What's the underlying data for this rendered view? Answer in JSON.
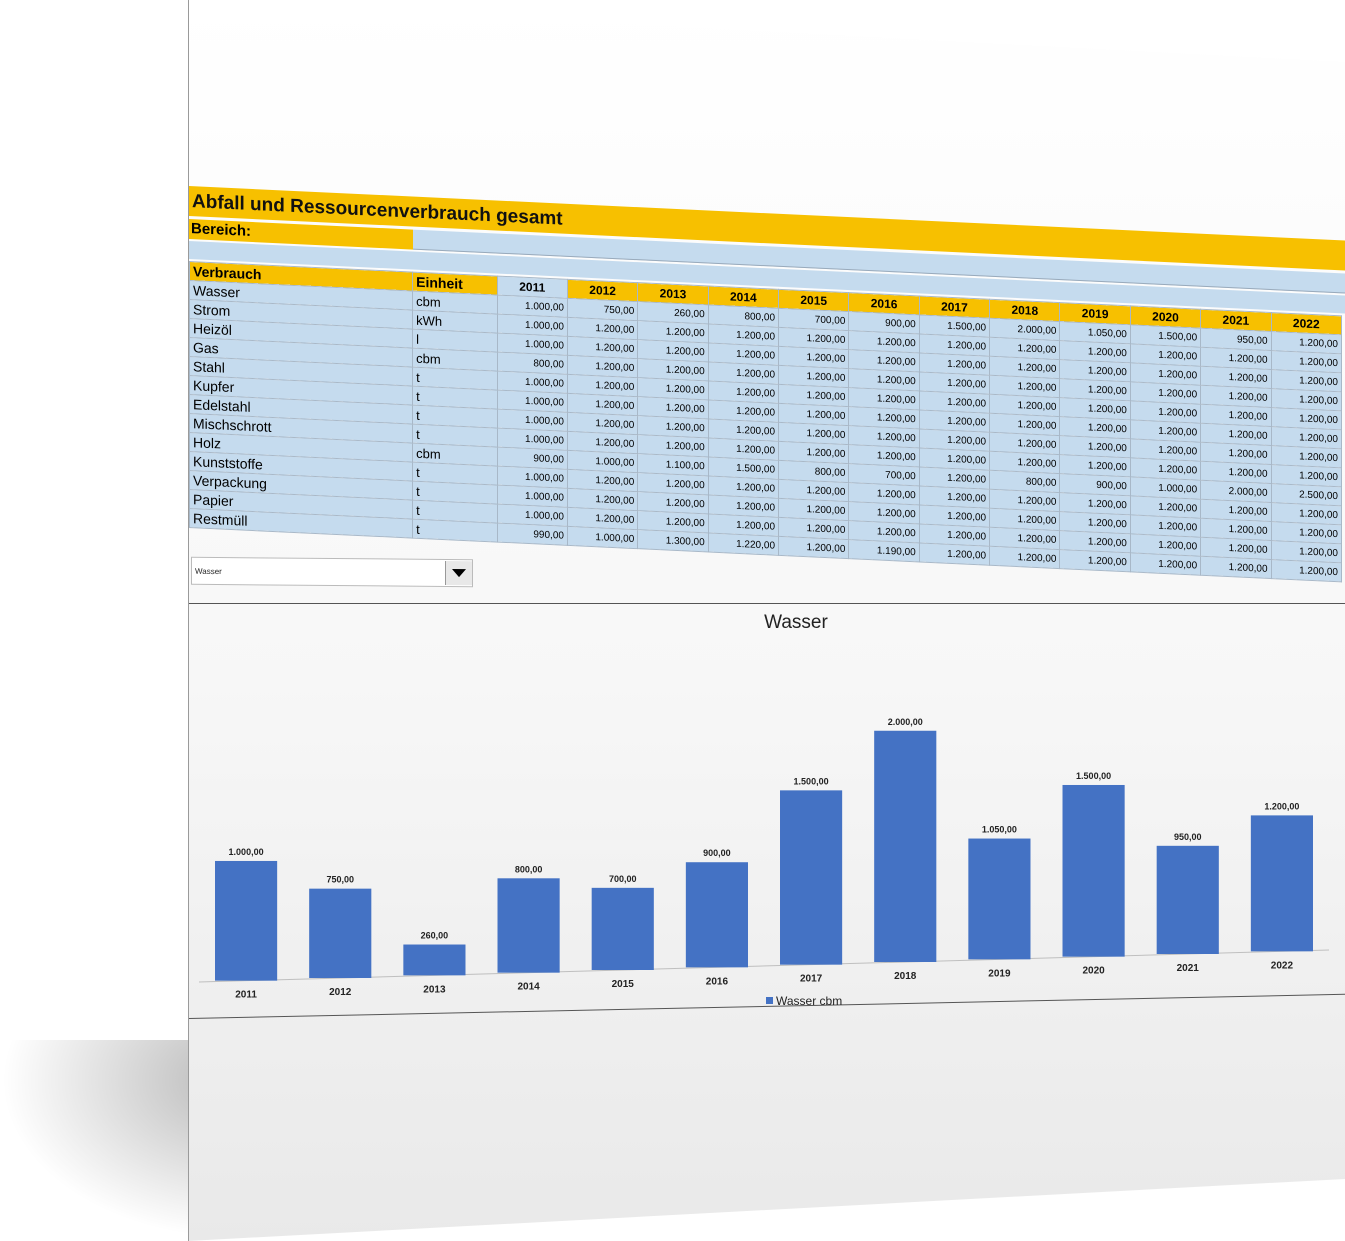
{
  "title": "Abfall und Ressourcenverbrauch gesamt",
  "bereich_label": "Bereich:",
  "table": {
    "headers": [
      "Verbrauch",
      "Einheit"
    ],
    "years": [
      "2011",
      "2012",
      "2013",
      "2014",
      "2015",
      "2016",
      "2017",
      "2018",
      "2019",
      "2020",
      "2021",
      "2022"
    ],
    "rows": [
      {
        "name": "Wasser",
        "unit": "cbm",
        "values": [
          "1.000,00",
          "750,00",
          "260,00",
          "800,00",
          "700,00",
          "900,00",
          "1.500,00",
          "2.000,00",
          "1.050,00",
          "1.500,00",
          "950,00",
          "1.200,00"
        ]
      },
      {
        "name": "Strom",
        "unit": "kWh",
        "values": [
          "1.000,00",
          "1.200,00",
          "1.200,00",
          "1.200,00",
          "1.200,00",
          "1.200,00",
          "1.200,00",
          "1.200,00",
          "1.200,00",
          "1.200,00",
          "1.200,00",
          "1.200,00"
        ]
      },
      {
        "name": "Heizöl",
        "unit": "l",
        "values": [
          "1.000,00",
          "1.200,00",
          "1.200,00",
          "1.200,00",
          "1.200,00",
          "1.200,00",
          "1.200,00",
          "1.200,00",
          "1.200,00",
          "1.200,00",
          "1.200,00",
          "1.200,00"
        ]
      },
      {
        "name": "Gas",
        "unit": "cbm",
        "values": [
          "800,00",
          "1.200,00",
          "1.200,00",
          "1.200,00",
          "1.200,00",
          "1.200,00",
          "1.200,00",
          "1.200,00",
          "1.200,00",
          "1.200,00",
          "1.200,00",
          "1.200,00"
        ]
      },
      {
        "name": "Stahl",
        "unit": "t",
        "values": [
          "1.000,00",
          "1.200,00",
          "1.200,00",
          "1.200,00",
          "1.200,00",
          "1.200,00",
          "1.200,00",
          "1.200,00",
          "1.200,00",
          "1.200,00",
          "1.200,00",
          "1.200,00"
        ]
      },
      {
        "name": "Kupfer",
        "unit": "t",
        "values": [
          "1.000,00",
          "1.200,00",
          "1.200,00",
          "1.200,00",
          "1.200,00",
          "1.200,00",
          "1.200,00",
          "1.200,00",
          "1.200,00",
          "1.200,00",
          "1.200,00",
          "1.200,00"
        ]
      },
      {
        "name": "Edelstahl",
        "unit": "t",
        "values": [
          "1.000,00",
          "1.200,00",
          "1.200,00",
          "1.200,00",
          "1.200,00",
          "1.200,00",
          "1.200,00",
          "1.200,00",
          "1.200,00",
          "1.200,00",
          "1.200,00",
          "1.200,00"
        ]
      },
      {
        "name": "Mischschrott",
        "unit": "t",
        "values": [
          "1.000,00",
          "1.200,00",
          "1.200,00",
          "1.200,00",
          "1.200,00",
          "1.200,00",
          "1.200,00",
          "1.200,00",
          "1.200,00",
          "1.200,00",
          "1.200,00",
          "1.200,00"
        ]
      },
      {
        "name": "Holz",
        "unit": "cbm",
        "values": [
          "900,00",
          "1.000,00",
          "1.100,00",
          "1.500,00",
          "800,00",
          "700,00",
          "1.200,00",
          "800,00",
          "900,00",
          "1.000,00",
          "2.000,00",
          "2.500,00"
        ]
      },
      {
        "name": "Kunststoffe",
        "unit": "t",
        "values": [
          "1.000,00",
          "1.200,00",
          "1.200,00",
          "1.200,00",
          "1.200,00",
          "1.200,00",
          "1.200,00",
          "1.200,00",
          "1.200,00",
          "1.200,00",
          "1.200,00",
          "1.200,00"
        ]
      },
      {
        "name": "Verpackung",
        "unit": "t",
        "values": [
          "1.000,00",
          "1.200,00",
          "1.200,00",
          "1.200,00",
          "1.200,00",
          "1.200,00",
          "1.200,00",
          "1.200,00",
          "1.200,00",
          "1.200,00",
          "1.200,00",
          "1.200,00"
        ]
      },
      {
        "name": "Papier",
        "unit": "t",
        "values": [
          "1.000,00",
          "1.200,00",
          "1.200,00",
          "1.200,00",
          "1.200,00",
          "1.200,00",
          "1.200,00",
          "1.200,00",
          "1.200,00",
          "1.200,00",
          "1.200,00",
          "1.200,00"
        ]
      },
      {
        "name": "Restmüll",
        "unit": "t",
        "values": [
          "990,00",
          "1.000,00",
          "1.300,00",
          "1.220,00",
          "1.200,00",
          "1.190,00",
          "1.200,00",
          "1.200,00",
          "1.200,00",
          "1.200,00",
          "1.200,00",
          "1.200,00"
        ]
      }
    ]
  },
  "dropdown": {
    "value": "Wasser"
  },
  "colors": {
    "header": "#f7c000",
    "cell": "#c5dbee",
    "bar": "#4472c4"
  },
  "chart_data": {
    "type": "bar",
    "title": "Wasser",
    "categories": [
      "2011",
      "2012",
      "2013",
      "2014",
      "2015",
      "2016",
      "2017",
      "2018",
      "2019",
      "2020",
      "2021",
      "2022"
    ],
    "series": [
      {
        "name": "Wasser cbm",
        "values": [
          1000,
          750,
          260,
          800,
          700,
          900,
          1500,
          2000,
          1050,
          1500,
          950,
          1200
        ]
      }
    ],
    "data_labels": [
      "1.000,00",
      "750,00",
      "260,00",
      "800,00",
      "700,00",
      "900,00",
      "1.500,00",
      "2.000,00",
      "1.050,00",
      "1.500,00",
      "950,00",
      "1.200,00"
    ],
    "ylim": [
      0,
      2000
    ],
    "legend": "bottom",
    "grid": false
  }
}
